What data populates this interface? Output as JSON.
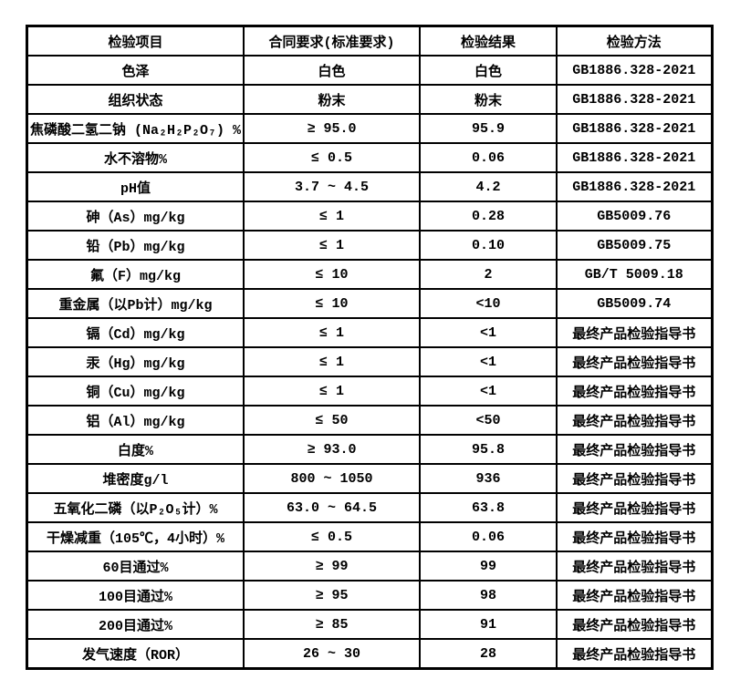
{
  "colors": {
    "background": "#ffffff",
    "border": "#000000",
    "text": "#000000"
  },
  "table": {
    "columns": [
      {
        "key": "item",
        "label": "检验项目"
      },
      {
        "key": "requirement",
        "label": "合同要求(标准要求)"
      },
      {
        "key": "result",
        "label": "检验结果"
      },
      {
        "key": "method",
        "label": "检验方法"
      }
    ],
    "rows": [
      {
        "item": "色泽",
        "requirement": "白色",
        "result": "白色",
        "method": "GB1886.328-2021"
      },
      {
        "item": "组织状态",
        "requirement": "粉末",
        "result": "粉末",
        "method": "GB1886.328-2021"
      },
      {
        "item": "焦磷酸二氢二钠 (Na₂H₂P₂O₇) %",
        "requirement": "≥ 95.0",
        "result": "95.9",
        "method": "GB1886.328-2021"
      },
      {
        "item": "水不溶物%",
        "requirement": "≤ 0.5",
        "result": "0.06",
        "method": "GB1886.328-2021"
      },
      {
        "item": "pH值",
        "requirement": "3.7 ~ 4.5",
        "result": "4.2",
        "method": "GB1886.328-2021"
      },
      {
        "item": "砷（As）mg/kg",
        "requirement": "≤ 1",
        "result": "0.28",
        "method": "GB5009.76"
      },
      {
        "item": "铅（Pb）mg/kg",
        "requirement": "≤ 1",
        "result": "0.10",
        "method": "GB5009.75"
      },
      {
        "item": "氟（F）mg/kg",
        "requirement": "≤ 10",
        "result": "2",
        "method": "GB/T 5009.18"
      },
      {
        "item": "重金属（以Pb计）mg/kg",
        "requirement": "≤ 10",
        "result": "<10",
        "method": "GB5009.74"
      },
      {
        "item": "镉（Cd）mg/kg",
        "requirement": "≤ 1",
        "result": "<1",
        "method": "最终产品检验指导书"
      },
      {
        "item": "汞（Hg）mg/kg",
        "requirement": "≤ 1",
        "result": "<1",
        "method": "最终产品检验指导书"
      },
      {
        "item": "铜（Cu）mg/kg",
        "requirement": "≤ 1",
        "result": "<1",
        "method": "最终产品检验指导书"
      },
      {
        "item": "铝（Al）mg/kg",
        "requirement": "≤ 50",
        "result": "<50",
        "method": "最终产品检验指导书"
      },
      {
        "item": "白度%",
        "requirement": "≥ 93.0",
        "result": "95.8",
        "method": "最终产品检验指导书"
      },
      {
        "item": "堆密度g/l",
        "requirement": "800 ~ 1050",
        "result": "936",
        "method": "最终产品检验指导书"
      },
      {
        "item": "五氧化二磷（以P₂O₅计）%",
        "requirement": "63.0 ~ 64.5",
        "result": "63.8",
        "method": "最终产品检验指导书"
      },
      {
        "item": "干燥减重（105℃，4小时）%",
        "requirement": "≤ 0.5",
        "result": "0.06",
        "method": "最终产品检验指导书"
      },
      {
        "item": "60目通过%",
        "requirement": "≥ 99",
        "result": "99",
        "method": "最终产品检验指导书"
      },
      {
        "item": "100目通过%",
        "requirement": "≥ 95",
        "result": "98",
        "method": "最终产品检验指导书"
      },
      {
        "item": "200目通过%",
        "requirement": "≥ 85",
        "result": "91",
        "method": "最终产品检验指导书"
      },
      {
        "item": "发气速度（ROR）",
        "requirement": "26 ~ 30",
        "result": "28",
        "method": "最终产品检验指导书"
      }
    ]
  }
}
